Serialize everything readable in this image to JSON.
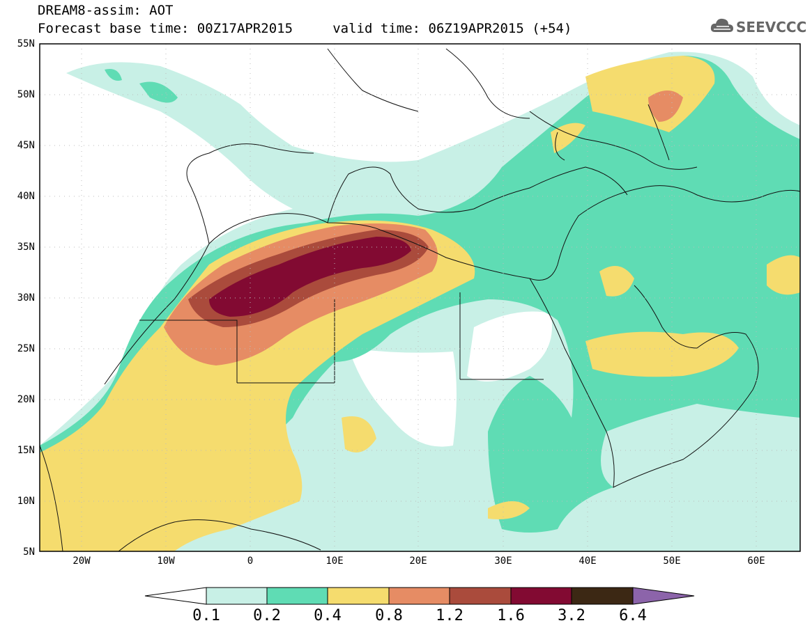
{
  "header": {
    "line1": "DREAM8-assim: AOT",
    "line2": "Forecast base time: 00Z17APR2015     valid time: 06Z19APR2015 (+54)"
  },
  "logo": {
    "text": "SEEVCCC",
    "icon": "cloud-icon"
  },
  "axes": {
    "y_labels": [
      "55N",
      "50N",
      "45N",
      "40N",
      "35N",
      "30N",
      "25N",
      "20N",
      "15N",
      "10N",
      "5N"
    ],
    "x_labels": [
      "20W",
      "10W",
      "0",
      "10E",
      "20E",
      "30E",
      "40E",
      "50E",
      "60E"
    ],
    "lat_range": [
      5,
      55
    ],
    "lon_range": [
      -25,
      65
    ]
  },
  "colorbar": {
    "levels": [
      "0.1",
      "0.2",
      "0.4",
      "0.8",
      "1.2",
      "1.6",
      "3.2",
      "6.4"
    ],
    "colors": [
      "#c8f0e6",
      "#5fdcb4",
      "#f5dc6e",
      "#e68c64",
      "#aa4b3c",
      "#820a32",
      "#3c2814",
      "#8c64aa"
    ]
  }
}
